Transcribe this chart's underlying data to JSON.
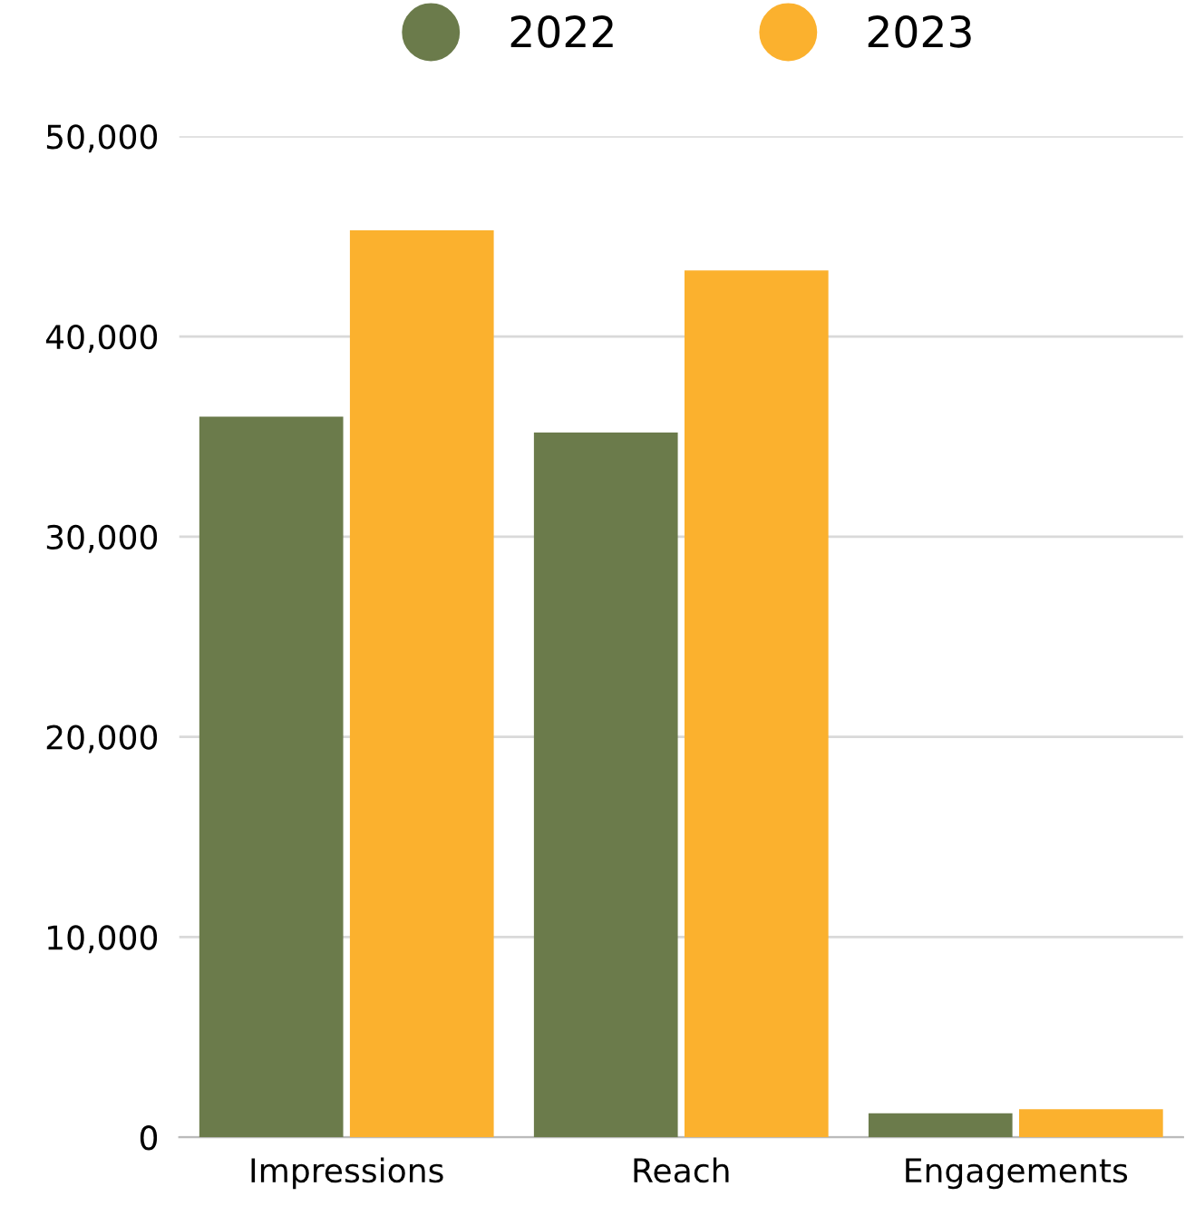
{
  "chart_data": {
    "type": "bar",
    "categories": [
      "Impressions",
      "Reach",
      "Engagements"
    ],
    "series": [
      {
        "name": "2022",
        "color": "#6b7b4b",
        "values": [
          36000,
          35200,
          1200
        ]
      },
      {
        "name": "2023",
        "color": "#fbb12e",
        "values": [
          45300,
          43300,
          1400
        ]
      }
    ],
    "ylim": [
      0,
      50000
    ],
    "yticks": [
      {
        "value": 0,
        "label": "0"
      },
      {
        "value": 10000,
        "label": "10,000"
      },
      {
        "value": 20000,
        "label": "20,000"
      },
      {
        "value": 30000,
        "label": "30,000"
      },
      {
        "value": 40000,
        "label": "40,000"
      },
      {
        "value": 50000,
        "label": "50,000"
      }
    ],
    "grid": "y",
    "legend": "top"
  }
}
